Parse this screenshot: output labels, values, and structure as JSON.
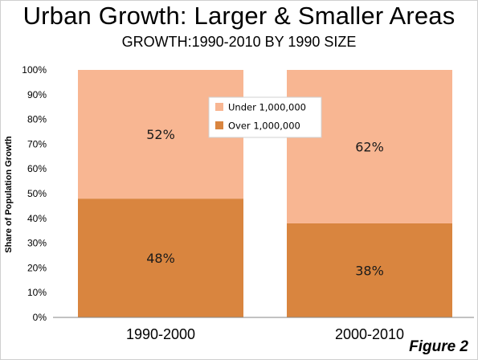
{
  "chart_data": {
    "type": "bar",
    "stacked": true,
    "title": "Urban Growth: Larger & Smaller Areas",
    "subtitle": "GROWTH:1990-2010 BY 1990 SIZE",
    "ylabel": "Share of Population Growth",
    "xlabel": "",
    "ylim": [
      0,
      100
    ],
    "yticks": [
      "0%",
      "10%",
      "20%",
      "30%",
      "40%",
      "50%",
      "60%",
      "70%",
      "80%",
      "90%",
      "100%"
    ],
    "categories": [
      "1990-2000",
      "2000-2010"
    ],
    "series": [
      {
        "name": "Over 1,000,000",
        "values": [
          48,
          38
        ],
        "labels": [
          "48%",
          "38%"
        ],
        "color": "#d9853f"
      },
      {
        "name": "Under 1,000,000",
        "values": [
          52,
          62
        ],
        "labels": [
          "52%",
          "62%"
        ],
        "color": "#f8b692"
      }
    ],
    "legend_position": "top-center",
    "legend_order": [
      "Under 1,000,000",
      "Over 1,000,000"
    ],
    "grid": false
  },
  "figure_label": "Figure 2"
}
